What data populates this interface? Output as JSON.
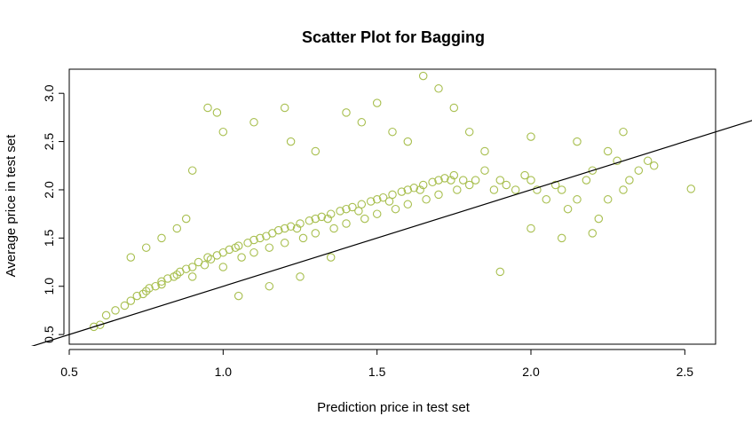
{
  "chart_data": {
    "type": "scatter",
    "title": "Scatter Plot for Bagging",
    "xlabel": "Prediction price in test set",
    "ylabel": "Average price in test set",
    "xlim": [
      0.5,
      2.6
    ],
    "ylim": [
      0.4,
      3.25
    ],
    "x_ticks": [
      "0.5",
      "1.0",
      "1.5",
      "2.0",
      "2.5"
    ],
    "y_ticks": [
      "0.5",
      "1.0",
      "1.5",
      "2.0",
      "2.5",
      "3.0"
    ],
    "point_color": "#a8bf4f",
    "marker": "open-circle",
    "reference_line": {
      "intercept": 0.0,
      "slope": 1.0,
      "color": "#000000"
    },
    "series": [
      {
        "x": [
          0.58,
          0.6,
          0.62,
          0.65,
          0.68,
          0.7,
          0.72,
          0.74,
          0.75,
          0.76,
          0.78,
          0.8,
          0.8,
          0.82,
          0.84,
          0.85,
          0.86,
          0.88,
          0.9,
          0.9,
          0.92,
          0.94,
          0.95,
          0.96,
          0.98,
          1.0,
          1.0,
          1.02,
          1.04,
          1.05,
          1.06,
          1.08,
          1.1,
          1.1,
          1.12,
          1.14,
          1.15,
          1.16,
          1.18,
          1.2,
          1.2,
          1.22,
          1.24,
          1.25,
          1.26,
          1.28,
          1.3,
          1.3,
          1.32,
          1.34,
          1.35,
          1.36,
          1.38,
          1.4,
          1.4,
          1.42,
          1.44,
          1.45,
          1.46,
          1.48,
          1.5,
          1.5,
          1.52,
          1.54,
          1.55,
          1.56,
          1.58,
          1.6,
          1.6,
          1.62,
          1.64,
          1.65,
          1.66,
          1.68,
          1.7,
          1.7,
          1.72,
          1.74,
          1.75,
          1.76,
          1.78,
          1.8,
          1.82,
          1.85,
          1.88,
          1.9,
          1.92,
          1.95,
          1.98,
          2.0,
          2.02,
          2.05,
          2.08,
          2.1,
          2.12,
          2.15,
          2.18,
          2.2,
          2.22,
          2.25,
          2.28,
          2.3,
          2.32,
          2.35,
          2.38,
          2.4,
          2.52,
          0.95,
          0.98,
          1.2,
          1.22,
          1.1,
          1.5,
          1.65,
          1.7,
          1.75,
          0.9,
          1.0,
          1.3,
          1.4,
          1.45,
          1.55,
          1.6,
          1.8,
          1.85,
          2.0,
          2.15,
          2.25,
          2.3,
          0.7,
          0.75,
          0.8,
          0.85,
          0.88,
          1.9,
          2.0,
          2.1,
          2.2,
          1.35,
          1.25,
          1.05,
          1.15
        ],
        "y": [
          0.58,
          0.6,
          0.7,
          0.75,
          0.8,
          0.85,
          0.9,
          0.92,
          0.95,
          0.98,
          1.0,
          1.02,
          1.05,
          1.08,
          1.1,
          1.12,
          1.15,
          1.18,
          1.2,
          1.1,
          1.25,
          1.22,
          1.3,
          1.28,
          1.32,
          1.35,
          1.2,
          1.38,
          1.4,
          1.42,
          1.3,
          1.45,
          1.48,
          1.35,
          1.5,
          1.52,
          1.4,
          1.55,
          1.58,
          1.6,
          1.45,
          1.62,
          1.6,
          1.65,
          1.5,
          1.68,
          1.7,
          1.55,
          1.72,
          1.7,
          1.75,
          1.6,
          1.78,
          1.8,
          1.65,
          1.82,
          1.78,
          1.85,
          1.7,
          1.88,
          1.9,
          1.75,
          1.92,
          1.88,
          1.95,
          1.8,
          1.98,
          2.0,
          1.85,
          2.02,
          2.0,
          2.05,
          1.9,
          2.08,
          2.1,
          1.95,
          2.12,
          2.1,
          2.15,
          2.0,
          2.1,
          2.05,
          2.1,
          2.2,
          2.0,
          2.1,
          2.05,
          2.0,
          2.15,
          2.1,
          2.0,
          1.9,
          2.05,
          2.0,
          1.8,
          1.9,
          2.1,
          2.2,
          1.7,
          1.9,
          2.3,
          2.0,
          2.1,
          2.2,
          2.3,
          2.25,
          2.01,
          2.85,
          2.8,
          2.85,
          2.5,
          2.7,
          2.9,
          3.18,
          3.05,
          2.85,
          2.2,
          2.6,
          2.4,
          2.8,
          2.7,
          2.6,
          2.5,
          2.6,
          2.4,
          2.55,
          2.5,
          2.4,
          2.6,
          1.3,
          1.4,
          1.5,
          1.6,
          1.7,
          1.15,
          1.6,
          1.5,
          1.55,
          1.3,
          1.1,
          0.9,
          1.0
        ]
      }
    ]
  }
}
